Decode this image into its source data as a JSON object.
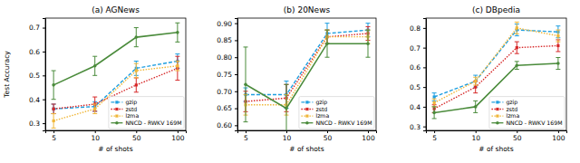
{
  "chart_data": [
    {
      "type": "line",
      "title": "(a) AGNews",
      "x_label": "# of shots",
      "y_label": "Test Accuracy",
      "categories": [
        "5",
        "10",
        "50",
        "100"
      ],
      "ylim": [
        0.27,
        0.74
      ],
      "yticks": [
        0.3,
        0.4,
        0.5,
        0.6,
        0.7
      ],
      "grid": false,
      "legend": "lower right",
      "series": [
        {
          "name": "gzip",
          "color": "#1f9fe0",
          "line_style": "dashed",
          "marker": "square",
          "values": [
            0.36,
            0.37,
            0.53,
            0.56
          ],
          "errors": [
            0.02,
            0.02,
            0.03,
            0.03
          ]
        },
        {
          "name": "zstd",
          "color": "#d62728",
          "line_style": "dotted",
          "marker": "square",
          "values": [
            0.36,
            0.38,
            0.46,
            0.53
          ],
          "errors": [
            0.02,
            0.03,
            0.03,
            0.05
          ]
        },
        {
          "name": "lzma",
          "color": "#f0b73a",
          "line_style": "dotted",
          "marker": "square",
          "values": [
            0.31,
            0.36,
            0.52,
            0.54
          ],
          "errors": [
            0.03,
            0.02,
            0.03,
            0.02
          ]
        },
        {
          "name": "NNCD - RWKV 169M",
          "color": "#4a8b3b",
          "line_style": "solid",
          "marker": "circle",
          "values": [
            0.46,
            0.54,
            0.66,
            0.68
          ],
          "errors": [
            0.06,
            0.04,
            0.04,
            0.04
          ]
        }
      ]
    },
    {
      "type": "line",
      "title": "(b) 20News",
      "x_label": "# of shots",
      "categories": [
        "5",
        "10",
        "50",
        "100"
      ],
      "ylim": [
        0.585,
        0.915
      ],
      "yticks": [
        {
          "value": 0.6,
          "label": "0.60"
        },
        {
          "value": 0.65,
          "label": "0.65"
        },
        {
          "value": 0.7,
          "label": "0.70"
        },
        {
          "value": 0.75,
          "label": "0.75"
        },
        {
          "value": 0.8,
          "label": "0.80"
        },
        {
          "value": 0.85,
          "label": "0.85"
        },
        {
          "value": 0.9,
          "label": "0.90"
        }
      ],
      "grid": false,
      "legend": "lower right",
      "series": [
        {
          "name": "gzip",
          "color": "#1f9fe0",
          "line_style": "dashed",
          "marker": "square",
          "values": [
            0.69,
            0.69,
            0.87,
            0.88
          ],
          "errors": [
            0.02,
            0.04,
            0.03,
            0.02
          ]
        },
        {
          "name": "zstd",
          "color": "#d62728",
          "line_style": "dotted",
          "marker": "square",
          "values": [
            0.67,
            0.68,
            0.86,
            0.87
          ],
          "errors": [
            0.03,
            0.04,
            0.02,
            0.02
          ]
        },
        {
          "name": "lzma",
          "color": "#f0b73a",
          "line_style": "dotted",
          "marker": "square",
          "values": [
            0.66,
            0.66,
            0.86,
            0.86
          ],
          "errors": [
            0.03,
            0.03,
            0.02,
            0.02
          ]
        },
        {
          "name": "NNCD - RWKV 169M",
          "color": "#4a8b3b",
          "line_style": "solid",
          "marker": "circle",
          "values": [
            0.72,
            0.65,
            0.84,
            0.84
          ],
          "errors": [
            0.11,
            0.07,
            0.04,
            0.04
          ]
        }
      ]
    },
    {
      "type": "line",
      "title": "(c) DBpedia",
      "x_label": "# of shots",
      "categories": [
        "5",
        "10",
        "50",
        "100"
      ],
      "ylim": [
        0.28,
        0.85
      ],
      "yticks": [
        0.3,
        0.4,
        0.5,
        0.6,
        0.7,
        0.8
      ],
      "grid": false,
      "legend": "lower right",
      "series": [
        {
          "name": "gzip",
          "color": "#1f9fe0",
          "line_style": "dashed",
          "marker": "square",
          "values": [
            0.45,
            0.53,
            0.79,
            0.78
          ],
          "errors": [
            0.02,
            0.03,
            0.03,
            0.03
          ]
        },
        {
          "name": "zstd",
          "color": "#d62728",
          "line_style": "dotted",
          "marker": "square",
          "values": [
            0.39,
            0.5,
            0.7,
            0.71
          ],
          "errors": [
            0.02,
            0.03,
            0.03,
            0.03
          ]
        },
        {
          "name": "lzma",
          "color": "#f0b73a",
          "line_style": "dotted",
          "marker": "square",
          "values": [
            0.42,
            0.53,
            0.8,
            0.76
          ],
          "errors": [
            0.02,
            0.02,
            0.03,
            0.03
          ]
        },
        {
          "name": "NNCD - RWKV 169M",
          "color": "#4a8b3b",
          "line_style": "solid",
          "marker": "circle",
          "values": [
            0.37,
            0.4,
            0.61,
            0.62
          ],
          "errors": [
            0.03,
            0.03,
            0.02,
            0.03
          ]
        }
      ]
    }
  ]
}
